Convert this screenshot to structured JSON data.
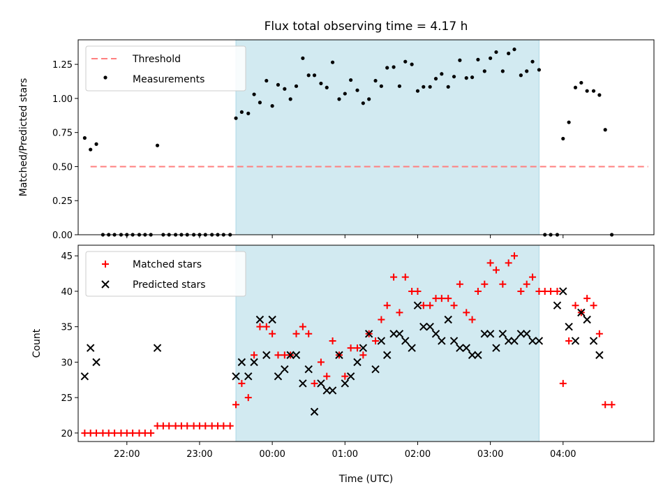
{
  "chart_data": [
    {
      "type": "scatter",
      "title": "Flux total observing time = 4.17 h",
      "ylabel": "Matched/Predicted stars",
      "ylim": [
        0,
        1.43
      ],
      "yticks": [
        "0.00",
        "0.25",
        "0.50",
        "0.75",
        "1.00",
        "1.25"
      ],
      "xlim": [
        21.33,
        29.25
      ],
      "shaded_span": [
        23.5,
        27.67
      ],
      "shade_color": "#add8e6",
      "threshold": {
        "name": "Threshold",
        "value": 0.5,
        "x": [
          21.5,
          29.17
        ],
        "color": "#ff7f7f"
      },
      "legend": [
        "Threshold",
        "Measurements"
      ],
      "legend_position": "upper left",
      "series": [
        {
          "name": "Measurements",
          "color": "#000000",
          "points": [
            [
              21.42,
              0.71
            ],
            [
              21.5,
              0.625
            ],
            [
              21.58,
              0.665
            ],
            [
              21.67,
              0
            ],
            [
              21.75,
              0
            ],
            [
              21.83,
              0
            ],
            [
              21.92,
              0
            ],
            [
              22.0,
              0
            ],
            [
              22.08,
              0
            ],
            [
              22.17,
              0
            ],
            [
              22.25,
              0
            ],
            [
              22.33,
              0
            ],
            [
              22.42,
              0.655
            ],
            [
              22.5,
              0
            ],
            [
              22.58,
              0
            ],
            [
              22.67,
              0
            ],
            [
              22.75,
              0
            ],
            [
              22.83,
              0
            ],
            [
              22.92,
              0
            ],
            [
              23.0,
              0
            ],
            [
              23.08,
              0
            ],
            [
              23.17,
              0
            ],
            [
              23.25,
              0
            ],
            [
              23.33,
              0
            ],
            [
              23.42,
              0
            ],
            [
              23.5,
              0.855
            ],
            [
              23.58,
              0.9
            ],
            [
              23.67,
              0.89
            ],
            [
              23.75,
              1.03
            ],
            [
              23.83,
              0.97
            ],
            [
              23.92,
              1.13
            ],
            [
              24.0,
              0.945
            ],
            [
              24.08,
              1.1
            ],
            [
              24.17,
              1.07
            ],
            [
              24.25,
              0.995
            ],
            [
              24.33,
              1.09
            ],
            [
              24.42,
              1.295
            ],
            [
              24.5,
              1.17
            ],
            [
              24.58,
              1.17
            ],
            [
              24.67,
              1.11
            ],
            [
              24.75,
              1.08
            ],
            [
              24.83,
              1.265
            ],
            [
              24.92,
              0.995
            ],
            [
              25.0,
              1.035
            ],
            [
              25.08,
              1.135
            ],
            [
              25.17,
              1.06
            ],
            [
              25.25,
              0.965
            ],
            [
              25.33,
              0.995
            ],
            [
              25.42,
              1.13
            ],
            [
              25.5,
              1.09
            ],
            [
              25.58,
              1.225
            ],
            [
              25.67,
              1.23
            ],
            [
              25.75,
              1.09
            ],
            [
              25.83,
              1.27
            ],
            [
              25.92,
              1.25
            ],
            [
              26.0,
              1.055
            ],
            [
              26.08,
              1.085
            ],
            [
              26.17,
              1.085
            ],
            [
              26.25,
              1.145
            ],
            [
              26.33,
              1.18
            ],
            [
              26.42,
              1.085
            ],
            [
              26.5,
              1.16
            ],
            [
              26.58,
              1.28
            ],
            [
              26.67,
              1.15
            ],
            [
              26.75,
              1.155
            ],
            [
              26.83,
              1.285
            ],
            [
              26.92,
              1.2
            ],
            [
              27.0,
              1.295
            ],
            [
              27.08,
              1.34
            ],
            [
              27.17,
              1.2
            ],
            [
              27.25,
              1.33
            ],
            [
              27.33,
              1.36
            ],
            [
              27.42,
              1.17
            ],
            [
              27.5,
              1.2
            ],
            [
              27.58,
              1.27
            ],
            [
              27.67,
              1.21
            ],
            [
              27.75,
              0
            ],
            [
              27.83,
              0
            ],
            [
              27.92,
              0
            ],
            [
              28.0,
              0.705
            ],
            [
              28.08,
              0.825
            ],
            [
              28.17,
              1.08
            ],
            [
              28.25,
              1.115
            ],
            [
              28.33,
              1.055
            ],
            [
              28.42,
              1.055
            ],
            [
              28.5,
              1.025
            ],
            [
              28.58,
              0.77
            ],
            [
              28.67,
              0
            ]
          ]
        }
      ]
    },
    {
      "type": "scatter",
      "xlabel": "Time (UTC)",
      "ylabel": "Count",
      "ylim": [
        18.8,
        46.5
      ],
      "yticks": [
        "20",
        "25",
        "30",
        "35",
        "40",
        "45"
      ],
      "xlim": [
        21.33,
        29.25
      ],
      "xticks": [
        {
          "value": 22,
          "label": "22:00"
        },
        {
          "value": 23,
          "label": "23:00"
        },
        {
          "value": 24,
          "label": "00:00"
        },
        {
          "value": 25,
          "label": "01:00"
        },
        {
          "value": 26,
          "label": "02:00"
        },
        {
          "value": 27,
          "label": "03:00"
        },
        {
          "value": 28,
          "label": "04:00"
        }
      ],
      "shaded_span": [
        23.5,
        27.67
      ],
      "shade_color": "#add8e6",
      "legend": [
        "Matched stars",
        "Predicted stars"
      ],
      "legend_position": "upper left",
      "series": [
        {
          "name": "Matched stars",
          "marker": "+",
          "color": "#ff0000",
          "points": [
            [
              21.42,
              20
            ],
            [
              21.5,
              20
            ],
            [
              21.58,
              20
            ],
            [
              21.67,
              20
            ],
            [
              21.75,
              20
            ],
            [
              21.83,
              20
            ],
            [
              21.92,
              20
            ],
            [
              22.0,
              20
            ],
            [
              22.08,
              20
            ],
            [
              22.17,
              20
            ],
            [
              22.25,
              20
            ],
            [
              22.33,
              20
            ],
            [
              22.42,
              21
            ],
            [
              22.5,
              21
            ],
            [
              22.58,
              21
            ],
            [
              22.67,
              21
            ],
            [
              22.75,
              21
            ],
            [
              22.83,
              21
            ],
            [
              22.92,
              21
            ],
            [
              23.0,
              21
            ],
            [
              23.08,
              21
            ],
            [
              23.17,
              21
            ],
            [
              23.25,
              21
            ],
            [
              23.33,
              21
            ],
            [
              23.42,
              21
            ],
            [
              23.5,
              24
            ],
            [
              23.58,
              27
            ],
            [
              23.67,
              25
            ],
            [
              23.75,
              31
            ],
            [
              23.83,
              35
            ],
            [
              23.92,
              35
            ],
            [
              24.0,
              34
            ],
            [
              24.08,
              31
            ],
            [
              24.17,
              31
            ],
            [
              24.25,
              31
            ],
            [
              24.33,
              34
            ],
            [
              24.42,
              35
            ],
            [
              24.5,
              34
            ],
            [
              24.58,
              27
            ],
            [
              24.67,
              30
            ],
            [
              24.75,
              28
            ],
            [
              24.83,
              33
            ],
            [
              24.92,
              31
            ],
            [
              25.0,
              28
            ],
            [
              25.08,
              32
            ],
            [
              25.17,
              32
            ],
            [
              25.25,
              31
            ],
            [
              25.33,
              34
            ],
            [
              25.42,
              33
            ],
            [
              25.5,
              36
            ],
            [
              25.58,
              38
            ],
            [
              25.67,
              42
            ],
            [
              25.75,
              37
            ],
            [
              25.83,
              42
            ],
            [
              25.92,
              40
            ],
            [
              26.0,
              40
            ],
            [
              26.08,
              38
            ],
            [
              26.17,
              38
            ],
            [
              26.25,
              39
            ],
            [
              26.33,
              39
            ],
            [
              26.42,
              39
            ],
            [
              26.5,
              38
            ],
            [
              26.58,
              41
            ],
            [
              26.67,
              37
            ],
            [
              26.75,
              36
            ],
            [
              26.83,
              40
            ],
            [
              26.92,
              41
            ],
            [
              27.0,
              44
            ],
            [
              27.08,
              43
            ],
            [
              27.17,
              41
            ],
            [
              27.25,
              44
            ],
            [
              27.33,
              45
            ],
            [
              27.42,
              40
            ],
            [
              27.5,
              41
            ],
            [
              27.58,
              42
            ],
            [
              27.67,
              40
            ],
            [
              27.75,
              40
            ],
            [
              27.83,
              40
            ],
            [
              27.92,
              40
            ],
            [
              28.0,
              27
            ],
            [
              28.08,
              33
            ],
            [
              28.17,
              38
            ],
            [
              28.25,
              37
            ],
            [
              28.33,
              39
            ],
            [
              28.42,
              38
            ],
            [
              28.5,
              34
            ],
            [
              28.58,
              24
            ],
            [
              28.67,
              24
            ]
          ]
        },
        {
          "name": "Predicted stars",
          "marker": "x",
          "color": "#000000",
          "points": [
            [
              21.42,
              28
            ],
            [
              21.5,
              32
            ],
            [
              21.58,
              30
            ],
            [
              22.42,
              32
            ],
            [
              23.5,
              28
            ],
            [
              23.58,
              30
            ],
            [
              23.67,
              28
            ],
            [
              23.75,
              30
            ],
            [
              23.83,
              36
            ],
            [
              23.92,
              31
            ],
            [
              24.0,
              36
            ],
            [
              24.08,
              28
            ],
            [
              24.17,
              29
            ],
            [
              24.25,
              31
            ],
            [
              24.33,
              31
            ],
            [
              24.42,
              27
            ],
            [
              24.5,
              29
            ],
            [
              24.58,
              23
            ],
            [
              24.67,
              27
            ],
            [
              24.75,
              26
            ],
            [
              24.83,
              26
            ],
            [
              24.92,
              31
            ],
            [
              25.0,
              27
            ],
            [
              25.08,
              28
            ],
            [
              25.17,
              30
            ],
            [
              25.25,
              32
            ],
            [
              25.33,
              34
            ],
            [
              25.42,
              29
            ],
            [
              25.5,
              33
            ],
            [
              25.58,
              31
            ],
            [
              25.67,
              34
            ],
            [
              25.75,
              34
            ],
            [
              25.83,
              33
            ],
            [
              25.92,
              32
            ],
            [
              26.0,
              38
            ],
            [
              26.08,
              35
            ],
            [
              26.17,
              35
            ],
            [
              26.25,
              34
            ],
            [
              26.33,
              33
            ],
            [
              26.42,
              36
            ],
            [
              26.5,
              33
            ],
            [
              26.58,
              32
            ],
            [
              26.67,
              32
            ],
            [
              26.75,
              31
            ],
            [
              26.83,
              31
            ],
            [
              26.92,
              34
            ],
            [
              27.0,
              34
            ],
            [
              27.08,
              32
            ],
            [
              27.17,
              34
            ],
            [
              27.25,
              33
            ],
            [
              27.33,
              33
            ],
            [
              27.42,
              34
            ],
            [
              27.5,
              34
            ],
            [
              27.58,
              33
            ],
            [
              27.67,
              33
            ],
            [
              27.92,
              38
            ],
            [
              28.0,
              40
            ],
            [
              28.08,
              35
            ],
            [
              28.17,
              33
            ],
            [
              28.25,
              37
            ],
            [
              28.33,
              36
            ],
            [
              28.42,
              33
            ],
            [
              28.5,
              31
            ]
          ]
        }
      ]
    }
  ]
}
